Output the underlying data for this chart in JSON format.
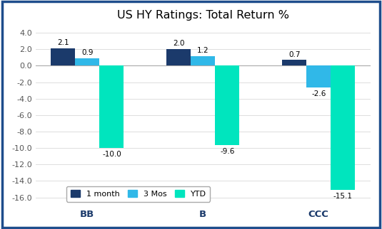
{
  "title": "US HY Ratings: Total Return %",
  "categories": [
    "BB",
    "B",
    "CCC"
  ],
  "series": {
    "1 month": [
      2.1,
      2.0,
      0.7
    ],
    "3 Mos": [
      0.9,
      1.2,
      -2.6
    ],
    "YTD": [
      -10.0,
      -9.6,
      -15.1
    ]
  },
  "colors": {
    "1 month": "#1b3a6b",
    "3 Mos": "#30b8e8",
    "YTD": "#00e5be"
  },
  "ylim": [
    -17.0,
    5.0
  ],
  "yticks": [
    4.0,
    2.0,
    0.0,
    -2.0,
    -4.0,
    -6.0,
    -8.0,
    -10.0,
    -12.0,
    -14.0,
    -16.0
  ],
  "bar_width": 0.21,
  "background_color": "#ffffff",
  "border_color": "#1e4d8c",
  "label_fontsize": 7.5,
  "title_fontsize": 11.5,
  "category_fontsize": 9.5,
  "ytick_fontsize": 8,
  "legend_fontsize": 8
}
